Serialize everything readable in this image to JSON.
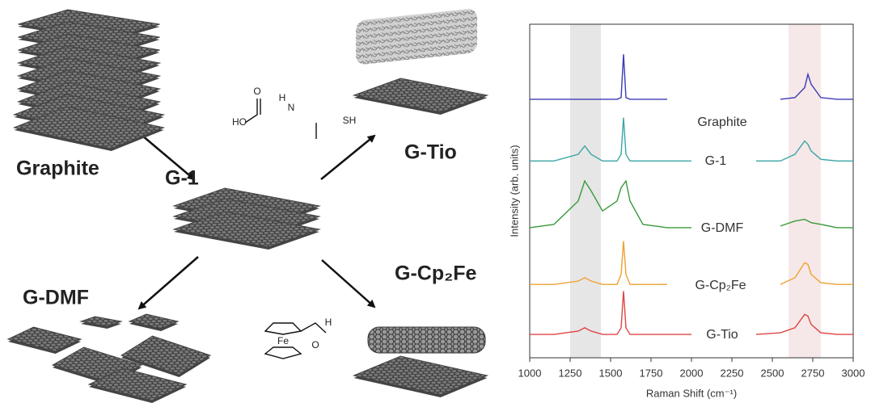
{
  "diagram": {
    "labels": [
      "Graphite",
      "G-1",
      "G-Tio",
      "G-DMF",
      "G-Cp₂Fe"
    ],
    "chem_labels": [
      "HO",
      "H",
      "N",
      "O",
      "SH",
      "Fe",
      "H",
      "O"
    ]
  },
  "chart_data": {
    "type": "line",
    "xlabel": "Raman Shift (cm⁻¹)",
    "ylabel": "Intensity (arb. units)",
    "xlim": [
      1000,
      3000
    ],
    "ylim": [
      0,
      100
    ],
    "xticks": [
      1000,
      1250,
      1500,
      1750,
      2000,
      2250,
      2500,
      2750,
      3000
    ],
    "bands": [
      {
        "range": [
          1250,
          1440
        ],
        "color": "#e6e6e6"
      },
      {
        "range": [
          2600,
          2800
        ],
        "color": "#f6e8e8"
      }
    ],
    "x": [
      1000,
      1150,
      1300,
      1340,
      1380,
      1450,
      1540,
      1565,
      1580,
      1595,
      1620,
      1700,
      1850,
      2000,
      2200,
      2400,
      2550,
      2640,
      2700,
      2720,
      2740,
      2800,
      2900,
      3000
    ],
    "series": [
      {
        "name": "Graphite",
        "color": "#3b3bb5",
        "values": [
          77.5,
          77.5,
          77.5,
          77.5,
          77.5,
          77.5,
          77.5,
          78,
          91,
          78,
          77.5,
          77.5,
          77.5,
          null,
          null,
          null,
          77.5,
          78,
          81,
          85,
          82,
          78,
          77.5,
          77.5
        ]
      },
      {
        "name": "G-1",
        "color": "#3aa6a6",
        "values": [
          59,
          59,
          61,
          63.5,
          61,
          59,
          59,
          61,
          72,
          61,
          59,
          59,
          59,
          59,
          null,
          59,
          59,
          61,
          65,
          64,
          62,
          59.5,
          59,
          59
        ]
      },
      {
        "name": "G-DMF",
        "color": "#3a9a3a",
        "values": [
          39,
          40,
          47,
          53,
          50,
          44,
          47,
          51,
          52,
          53,
          47,
          40,
          39,
          39,
          null,
          null,
          39.5,
          41,
          41.5,
          41,
          40.5,
          40,
          39,
          39
        ]
      },
      {
        "name": "G-Cp₂Fe",
        "color": "#f0a030",
        "values": [
          22,
          22,
          23,
          24,
          23,
          22,
          22,
          25,
          35,
          25,
          22,
          22,
          22,
          null,
          null,
          null,
          22,
          24,
          28.5,
          28,
          25,
          22.5,
          22,
          22
        ]
      },
      {
        "name": "G-Tio",
        "color": "#e04444",
        "values": [
          7,
          7,
          8,
          9,
          8,
          7,
          7,
          9,
          20,
          9,
          7,
          7,
          7,
          7,
          null,
          7,
          7.5,
          9,
          13,
          12.5,
          10,
          7.5,
          7,
          7
        ]
      }
    ]
  }
}
